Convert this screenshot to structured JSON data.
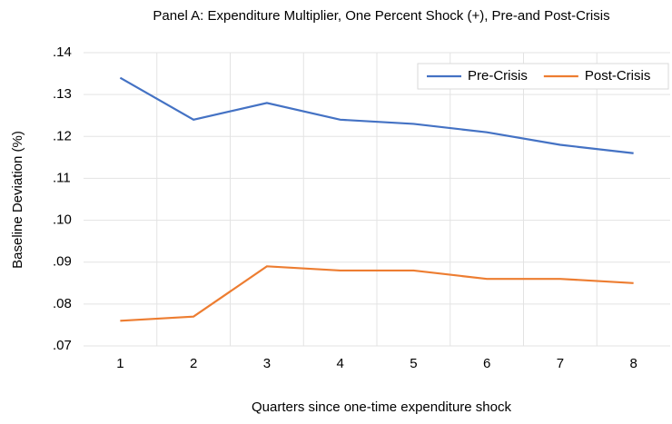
{
  "chart_data": {
    "type": "line",
    "title": "Panel A: Expenditure Multiplier, One Percent Shock (+), Pre-and Post-Crisis",
    "x_label": "Quarters since one-time expenditure shock",
    "y_label": "Baseline Deviation (%)",
    "categories": [
      "1",
      "2",
      "3",
      "4",
      "5",
      "6",
      "7",
      "8"
    ],
    "series": [
      {
        "name": "Pre-Crisis",
        "color": "#4472c4",
        "values": [
          0.134,
          0.124,
          0.128,
          0.124,
          0.123,
          0.121,
          0.118,
          0.116
        ]
      },
      {
        "name": "Post-Crisis",
        "color": "#ed7d31",
        "values": [
          0.076,
          0.077,
          0.089,
          0.088,
          0.088,
          0.086,
          0.086,
          0.085
        ]
      }
    ],
    "ylim": [
      0.07,
      0.14
    ],
    "yticks": [
      {
        "value": 0.07,
        "label": ".07"
      },
      {
        "value": 0.08,
        "label": ".08"
      },
      {
        "value": 0.09,
        "label": ".09"
      },
      {
        "value": 0.1,
        "label": ".10"
      },
      {
        "value": 0.11,
        "label": ".11"
      },
      {
        "value": 0.12,
        "label": ".12"
      },
      {
        "value": 0.13,
        "label": ".13"
      },
      {
        "value": 0.14,
        "label": ".14"
      }
    ],
    "grid": true,
    "legend": "upper right"
  }
}
